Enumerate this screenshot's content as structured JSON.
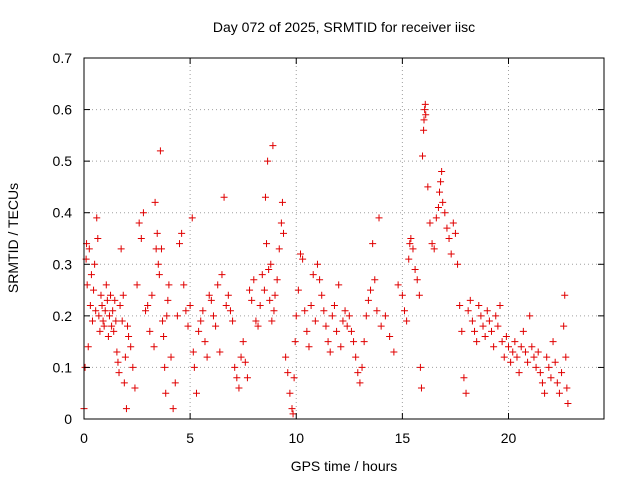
{
  "chart_data": {
    "type": "scatter",
    "title": "Day 072 of 2025, SRMTID for receiver iisc",
    "xlabel": "GPS time / hours",
    "ylabel": "SRMTID / TECUs",
    "xlim": [
      0,
      24.5
    ],
    "ylim": [
      0,
      0.7
    ],
    "xticks": [
      0,
      5,
      10,
      15,
      20
    ],
    "xtick_labels": [
      "0",
      "5",
      "10",
      "15",
      "20"
    ],
    "yticks": [
      0,
      0.1,
      0.2,
      0.3,
      0.4,
      0.5,
      0.6,
      0.7
    ],
    "ytick_labels": [
      "0",
      "0.1",
      "0.2",
      "0.3",
      "0.4",
      "0.5",
      "0.6",
      "0.7"
    ],
    "grid": true,
    "marker": "plus",
    "color": "#e00000",
    "series": [
      {
        "name": "SRMTID",
        "points": [
          [
            0.0,
            0.02
          ],
          [
            0.05,
            0.1
          ],
          [
            0.1,
            0.31
          ],
          [
            0.12,
            0.34
          ],
          [
            0.15,
            0.26
          ],
          [
            0.2,
            0.14
          ],
          [
            0.25,
            0.33
          ],
          [
            0.3,
            0.22
          ],
          [
            0.35,
            0.28
          ],
          [
            0.4,
            0.19
          ],
          [
            0.45,
            0.25
          ],
          [
            0.5,
            0.3
          ],
          [
            0.55,
            0.21
          ],
          [
            0.6,
            0.39
          ],
          [
            0.65,
            0.35
          ],
          [
            0.7,
            0.2
          ],
          [
            0.75,
            0.17
          ],
          [
            0.8,
            0.24
          ],
          [
            0.85,
            0.22
          ],
          [
            0.9,
            0.19
          ],
          [
            0.95,
            0.18
          ],
          [
            1.0,
            0.21
          ],
          [
            1.05,
            0.26
          ],
          [
            1.1,
            0.23
          ],
          [
            1.15,
            0.16
          ],
          [
            1.2,
            0.2
          ],
          [
            1.25,
            0.24
          ],
          [
            1.3,
            0.18
          ],
          [
            1.35,
            0.21
          ],
          [
            1.4,
            0.17
          ],
          [
            1.45,
            0.23
          ],
          [
            1.5,
            0.19
          ],
          [
            1.55,
            0.13
          ],
          [
            1.6,
            0.11
          ],
          [
            1.65,
            0.09
          ],
          [
            1.7,
            0.22
          ],
          [
            1.75,
            0.33
          ],
          [
            1.8,
            0.19
          ],
          [
            1.85,
            0.24
          ],
          [
            1.9,
            0.07
          ],
          [
            1.95,
            0.12
          ],
          [
            2.0,
            0.02
          ],
          [
            2.05,
            0.18
          ],
          [
            2.1,
            0.16
          ],
          [
            2.2,
            0.14
          ],
          [
            2.3,
            0.1
          ],
          [
            2.4,
            0.06
          ],
          [
            2.5,
            0.26
          ],
          [
            2.6,
            0.38
          ],
          [
            2.7,
            0.35
          ],
          [
            2.8,
            0.4
          ],
          [
            2.9,
            0.21
          ],
          [
            3.0,
            0.22
          ],
          [
            3.1,
            0.17
          ],
          [
            3.2,
            0.24
          ],
          [
            3.3,
            0.14
          ],
          [
            3.35,
            0.42
          ],
          [
            3.4,
            0.33
          ],
          [
            3.45,
            0.36
          ],
          [
            3.5,
            0.3
          ],
          [
            3.55,
            0.28
          ],
          [
            3.6,
            0.52
          ],
          [
            3.65,
            0.33
          ],
          [
            3.7,
            0.19
          ],
          [
            3.75,
            0.16
          ],
          [
            3.8,
            0.1
          ],
          [
            3.85,
            0.05
          ],
          [
            3.9,
            0.2
          ],
          [
            3.95,
            0.23
          ],
          [
            4.0,
            0.26
          ],
          [
            4.1,
            0.12
          ],
          [
            4.2,
            0.02
          ],
          [
            4.3,
            0.07
          ],
          [
            4.4,
            0.2
          ],
          [
            4.5,
            0.34
          ],
          [
            4.6,
            0.36
          ],
          [
            4.7,
            0.26
          ],
          [
            4.8,
            0.21
          ],
          [
            4.9,
            0.18
          ],
          [
            5.0,
            0.22
          ],
          [
            5.1,
            0.39
          ],
          [
            5.15,
            0.13
          ],
          [
            5.2,
            0.1
          ],
          [
            5.3,
            0.05
          ],
          [
            5.4,
            0.17
          ],
          [
            5.5,
            0.19
          ],
          [
            5.6,
            0.21
          ],
          [
            5.7,
            0.15
          ],
          [
            5.8,
            0.12
          ],
          [
            5.9,
            0.24
          ],
          [
            6.0,
            0.23
          ],
          [
            6.1,
            0.2
          ],
          [
            6.2,
            0.18
          ],
          [
            6.3,
            0.26
          ],
          [
            6.4,
            0.13
          ],
          [
            6.5,
            0.28
          ],
          [
            6.6,
            0.43
          ],
          [
            6.7,
            0.22
          ],
          [
            6.8,
            0.24
          ],
          [
            6.9,
            0.21
          ],
          [
            7.0,
            0.19
          ],
          [
            7.1,
            0.1
          ],
          [
            7.2,
            0.08
          ],
          [
            7.3,
            0.06
          ],
          [
            7.4,
            0.12
          ],
          [
            7.5,
            0.15
          ],
          [
            7.6,
            0.11
          ],
          [
            7.7,
            0.08
          ],
          [
            7.8,
            0.25
          ],
          [
            7.9,
            0.23
          ],
          [
            8.0,
            0.27
          ],
          [
            8.1,
            0.19
          ],
          [
            8.2,
            0.18
          ],
          [
            8.3,
            0.22
          ],
          [
            8.4,
            0.28
          ],
          [
            8.5,
            0.25
          ],
          [
            8.55,
            0.43
          ],
          [
            8.6,
            0.34
          ],
          [
            8.65,
            0.5
          ],
          [
            8.7,
            0.29
          ],
          [
            8.75,
            0.23
          ],
          [
            8.8,
            0.3
          ],
          [
            8.85,
            0.19
          ],
          [
            8.9,
            0.53
          ],
          [
            8.95,
            0.21
          ],
          [
            9.0,
            0.24
          ],
          [
            9.1,
            0.27
          ],
          [
            9.2,
            0.33
          ],
          [
            9.3,
            0.38
          ],
          [
            9.35,
            0.42
          ],
          [
            9.4,
            0.36
          ],
          [
            9.5,
            0.12
          ],
          [
            9.6,
            0.09
          ],
          [
            9.7,
            0.05
          ],
          [
            9.8,
            0.02
          ],
          [
            9.85,
            0.01
          ],
          [
            9.9,
            0.08
          ],
          [
            9.95,
            0.15
          ],
          [
            10.0,
            0.2
          ],
          [
            10.1,
            0.25
          ],
          [
            10.2,
            0.32
          ],
          [
            10.3,
            0.31
          ],
          [
            10.4,
            0.21
          ],
          [
            10.5,
            0.17
          ],
          [
            10.6,
            0.14
          ],
          [
            10.7,
            0.22
          ],
          [
            10.8,
            0.28
          ],
          [
            10.9,
            0.19
          ],
          [
            11.0,
            0.3
          ],
          [
            11.1,
            0.27
          ],
          [
            11.2,
            0.24
          ],
          [
            11.3,
            0.21
          ],
          [
            11.4,
            0.18
          ],
          [
            11.5,
            0.15
          ],
          [
            11.6,
            0.13
          ],
          [
            11.7,
            0.2
          ],
          [
            11.8,
            0.22
          ],
          [
            11.9,
            0.17
          ],
          [
            12.0,
            0.26
          ],
          [
            12.1,
            0.14
          ],
          [
            12.2,
            0.19
          ],
          [
            12.3,
            0.21
          ],
          [
            12.4,
            0.18
          ],
          [
            12.5,
            0.2
          ],
          [
            12.6,
            0.17
          ],
          [
            12.7,
            0.15
          ],
          [
            12.8,
            0.12
          ],
          [
            12.9,
            0.09
          ],
          [
            13.0,
            0.07
          ],
          [
            13.1,
            0.1
          ],
          [
            13.2,
            0.15
          ],
          [
            13.3,
            0.2
          ],
          [
            13.4,
            0.23
          ],
          [
            13.5,
            0.25
          ],
          [
            13.6,
            0.34
          ],
          [
            13.7,
            0.27
          ],
          [
            13.8,
            0.21
          ],
          [
            13.9,
            0.39
          ],
          [
            14.0,
            0.18
          ],
          [
            14.2,
            0.2
          ],
          [
            14.4,
            0.16
          ],
          [
            14.6,
            0.13
          ],
          [
            14.8,
            0.26
          ],
          [
            15.0,
            0.24
          ],
          [
            15.1,
            0.21
          ],
          [
            15.2,
            0.19
          ],
          [
            15.3,
            0.31
          ],
          [
            15.35,
            0.34
          ],
          [
            15.4,
            0.35
          ],
          [
            15.5,
            0.33
          ],
          [
            15.6,
            0.29
          ],
          [
            15.7,
            0.27
          ],
          [
            15.8,
            0.24
          ],
          [
            15.85,
            0.1
          ],
          [
            15.9,
            0.06
          ],
          [
            15.95,
            0.51
          ],
          [
            16.0,
            0.56
          ],
          [
            16.02,
            0.58
          ],
          [
            16.05,
            0.6
          ],
          [
            16.08,
            0.61
          ],
          [
            16.1,
            0.59
          ],
          [
            16.2,
            0.45
          ],
          [
            16.3,
            0.38
          ],
          [
            16.4,
            0.34
          ],
          [
            16.5,
            0.33
          ],
          [
            16.6,
            0.39
          ],
          [
            16.7,
            0.41
          ],
          [
            16.75,
            0.44
          ],
          [
            16.8,
            0.46
          ],
          [
            16.85,
            0.48
          ],
          [
            16.9,
            0.42
          ],
          [
            17.0,
            0.4
          ],
          [
            17.1,
            0.37
          ],
          [
            17.2,
            0.35
          ],
          [
            17.3,
            0.32
          ],
          [
            17.4,
            0.38
          ],
          [
            17.5,
            0.36
          ],
          [
            17.6,
            0.3
          ],
          [
            17.7,
            0.22
          ],
          [
            17.8,
            0.17
          ],
          [
            17.9,
            0.08
          ],
          [
            18.0,
            0.05
          ],
          [
            18.1,
            0.21
          ],
          [
            18.2,
            0.23
          ],
          [
            18.3,
            0.19
          ],
          [
            18.4,
            0.17
          ],
          [
            18.5,
            0.15
          ],
          [
            18.6,
            0.22
          ],
          [
            18.7,
            0.2
          ],
          [
            18.8,
            0.18
          ],
          [
            18.9,
            0.16
          ],
          [
            19.0,
            0.21
          ],
          [
            19.1,
            0.19
          ],
          [
            19.2,
            0.17
          ],
          [
            19.3,
            0.14
          ],
          [
            19.4,
            0.2
          ],
          [
            19.5,
            0.18
          ],
          [
            19.6,
            0.22
          ],
          [
            19.7,
            0.15
          ],
          [
            19.8,
            0.12
          ],
          [
            19.9,
            0.16
          ],
          [
            20.0,
            0.14
          ],
          [
            20.1,
            0.11
          ],
          [
            20.2,
            0.13
          ],
          [
            20.3,
            0.15
          ],
          [
            20.4,
            0.12
          ],
          [
            20.5,
            0.09
          ],
          [
            20.6,
            0.14
          ],
          [
            20.7,
            0.17
          ],
          [
            20.8,
            0.13
          ],
          [
            20.9,
            0.11
          ],
          [
            21.0,
            0.2
          ],
          [
            21.1,
            0.14
          ],
          [
            21.2,
            0.12
          ],
          [
            21.3,
            0.1
          ],
          [
            21.4,
            0.13
          ],
          [
            21.5,
            0.09
          ],
          [
            21.6,
            0.07
          ],
          [
            21.7,
            0.05
          ],
          [
            21.8,
            0.12
          ],
          [
            21.9,
            0.1
          ],
          [
            22.0,
            0.08
          ],
          [
            22.1,
            0.15
          ],
          [
            22.2,
            0.11
          ],
          [
            22.3,
            0.07
          ],
          [
            22.4,
            0.05
          ],
          [
            22.5,
            0.09
          ],
          [
            22.6,
            0.18
          ],
          [
            22.65,
            0.24
          ],
          [
            22.7,
            0.12
          ],
          [
            22.75,
            0.06
          ],
          [
            22.8,
            0.03
          ]
        ]
      }
    ]
  }
}
